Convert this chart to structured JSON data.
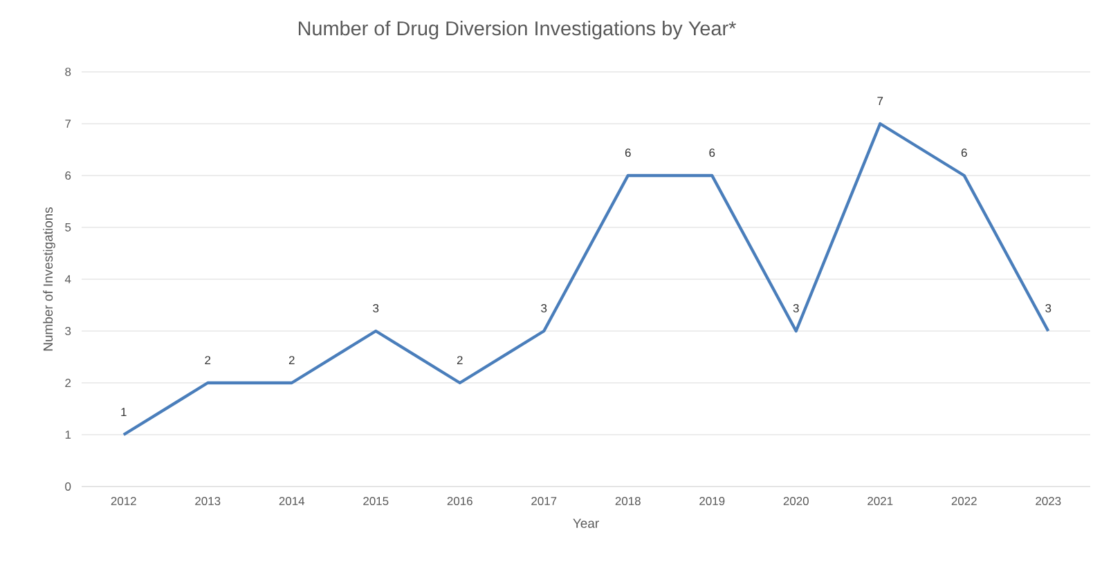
{
  "chart_data": {
    "type": "line",
    "title": "Number of Drug Diversion Investigations by Year*",
    "xlabel": "Year",
    "ylabel": "Number of Investigations",
    "categories": [
      "2012",
      "2013",
      "2014",
      "2015",
      "2016",
      "2017",
      "2018",
      "2019",
      "2020",
      "2021",
      "2022",
      "2023"
    ],
    "values": [
      1,
      2,
      2,
      3,
      2,
      3,
      6,
      6,
      3,
      7,
      6,
      3
    ],
    "color": "#4a7ebb",
    "ylim": [
      0,
      8
    ],
    "yticks": [
      0,
      1,
      2,
      3,
      4,
      5,
      6,
      7,
      8
    ],
    "grid": "y",
    "data_labels": true,
    "marker": "none",
    "line_style": "solid"
  }
}
